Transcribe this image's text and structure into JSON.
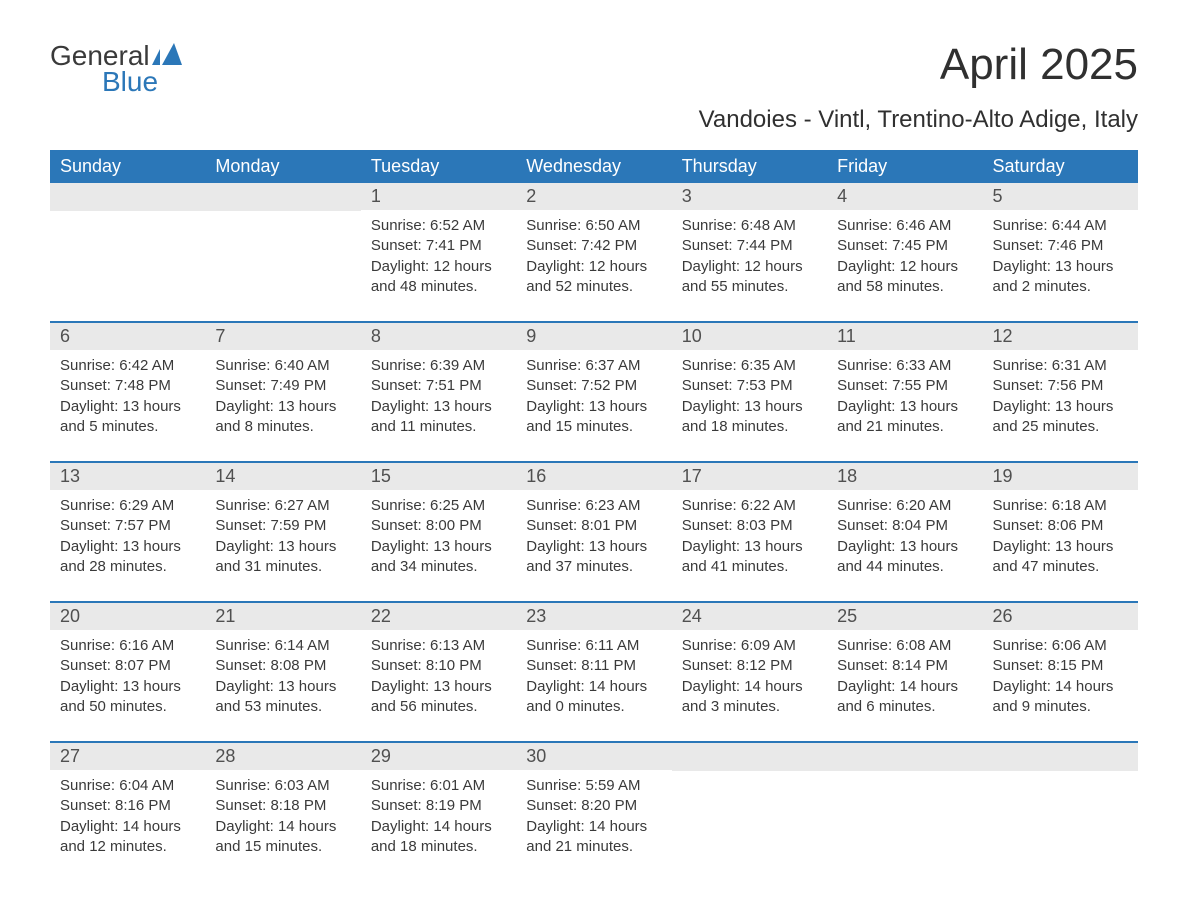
{
  "logo": {
    "text_top": "General",
    "text_bottom": "Blue",
    "icon_color": "#2b77b8"
  },
  "title": "April 2025",
  "subtitle": "Vandoies - Vintl, Trentino-Alto Adige, Italy",
  "colors": {
    "header_bg": "#2b77b8",
    "header_text": "#ffffff",
    "day_num_bg": "#e9e9e9",
    "row_divider": "#2b77b8",
    "text": "#3a3a3a"
  },
  "weekdays": [
    "Sunday",
    "Monday",
    "Tuesday",
    "Wednesday",
    "Thursday",
    "Friday",
    "Saturday"
  ],
  "weeks": [
    [
      null,
      null,
      {
        "day": "1",
        "sunrise": "Sunrise: 6:52 AM",
        "sunset": "Sunset: 7:41 PM",
        "daylight1": "Daylight: 12 hours",
        "daylight2": "and 48 minutes."
      },
      {
        "day": "2",
        "sunrise": "Sunrise: 6:50 AM",
        "sunset": "Sunset: 7:42 PM",
        "daylight1": "Daylight: 12 hours",
        "daylight2": "and 52 minutes."
      },
      {
        "day": "3",
        "sunrise": "Sunrise: 6:48 AM",
        "sunset": "Sunset: 7:44 PM",
        "daylight1": "Daylight: 12 hours",
        "daylight2": "and 55 minutes."
      },
      {
        "day": "4",
        "sunrise": "Sunrise: 6:46 AM",
        "sunset": "Sunset: 7:45 PM",
        "daylight1": "Daylight: 12 hours",
        "daylight2": "and 58 minutes."
      },
      {
        "day": "5",
        "sunrise": "Sunrise: 6:44 AM",
        "sunset": "Sunset: 7:46 PM",
        "daylight1": "Daylight: 13 hours",
        "daylight2": "and 2 minutes."
      }
    ],
    [
      {
        "day": "6",
        "sunrise": "Sunrise: 6:42 AM",
        "sunset": "Sunset: 7:48 PM",
        "daylight1": "Daylight: 13 hours",
        "daylight2": "and 5 minutes."
      },
      {
        "day": "7",
        "sunrise": "Sunrise: 6:40 AM",
        "sunset": "Sunset: 7:49 PM",
        "daylight1": "Daylight: 13 hours",
        "daylight2": "and 8 minutes."
      },
      {
        "day": "8",
        "sunrise": "Sunrise: 6:39 AM",
        "sunset": "Sunset: 7:51 PM",
        "daylight1": "Daylight: 13 hours",
        "daylight2": "and 11 minutes."
      },
      {
        "day": "9",
        "sunrise": "Sunrise: 6:37 AM",
        "sunset": "Sunset: 7:52 PM",
        "daylight1": "Daylight: 13 hours",
        "daylight2": "and 15 minutes."
      },
      {
        "day": "10",
        "sunrise": "Sunrise: 6:35 AM",
        "sunset": "Sunset: 7:53 PM",
        "daylight1": "Daylight: 13 hours",
        "daylight2": "and 18 minutes."
      },
      {
        "day": "11",
        "sunrise": "Sunrise: 6:33 AM",
        "sunset": "Sunset: 7:55 PM",
        "daylight1": "Daylight: 13 hours",
        "daylight2": "and 21 minutes."
      },
      {
        "day": "12",
        "sunrise": "Sunrise: 6:31 AM",
        "sunset": "Sunset: 7:56 PM",
        "daylight1": "Daylight: 13 hours",
        "daylight2": "and 25 minutes."
      }
    ],
    [
      {
        "day": "13",
        "sunrise": "Sunrise: 6:29 AM",
        "sunset": "Sunset: 7:57 PM",
        "daylight1": "Daylight: 13 hours",
        "daylight2": "and 28 minutes."
      },
      {
        "day": "14",
        "sunrise": "Sunrise: 6:27 AM",
        "sunset": "Sunset: 7:59 PM",
        "daylight1": "Daylight: 13 hours",
        "daylight2": "and 31 minutes."
      },
      {
        "day": "15",
        "sunrise": "Sunrise: 6:25 AM",
        "sunset": "Sunset: 8:00 PM",
        "daylight1": "Daylight: 13 hours",
        "daylight2": "and 34 minutes."
      },
      {
        "day": "16",
        "sunrise": "Sunrise: 6:23 AM",
        "sunset": "Sunset: 8:01 PM",
        "daylight1": "Daylight: 13 hours",
        "daylight2": "and 37 minutes."
      },
      {
        "day": "17",
        "sunrise": "Sunrise: 6:22 AM",
        "sunset": "Sunset: 8:03 PM",
        "daylight1": "Daylight: 13 hours",
        "daylight2": "and 41 minutes."
      },
      {
        "day": "18",
        "sunrise": "Sunrise: 6:20 AM",
        "sunset": "Sunset: 8:04 PM",
        "daylight1": "Daylight: 13 hours",
        "daylight2": "and 44 minutes."
      },
      {
        "day": "19",
        "sunrise": "Sunrise: 6:18 AM",
        "sunset": "Sunset: 8:06 PM",
        "daylight1": "Daylight: 13 hours",
        "daylight2": "and 47 minutes."
      }
    ],
    [
      {
        "day": "20",
        "sunrise": "Sunrise: 6:16 AM",
        "sunset": "Sunset: 8:07 PM",
        "daylight1": "Daylight: 13 hours",
        "daylight2": "and 50 minutes."
      },
      {
        "day": "21",
        "sunrise": "Sunrise: 6:14 AM",
        "sunset": "Sunset: 8:08 PM",
        "daylight1": "Daylight: 13 hours",
        "daylight2": "and 53 minutes."
      },
      {
        "day": "22",
        "sunrise": "Sunrise: 6:13 AM",
        "sunset": "Sunset: 8:10 PM",
        "daylight1": "Daylight: 13 hours",
        "daylight2": "and 56 minutes."
      },
      {
        "day": "23",
        "sunrise": "Sunrise: 6:11 AM",
        "sunset": "Sunset: 8:11 PM",
        "daylight1": "Daylight: 14 hours",
        "daylight2": "and 0 minutes."
      },
      {
        "day": "24",
        "sunrise": "Sunrise: 6:09 AM",
        "sunset": "Sunset: 8:12 PM",
        "daylight1": "Daylight: 14 hours",
        "daylight2": "and 3 minutes."
      },
      {
        "day": "25",
        "sunrise": "Sunrise: 6:08 AM",
        "sunset": "Sunset: 8:14 PM",
        "daylight1": "Daylight: 14 hours",
        "daylight2": "and 6 minutes."
      },
      {
        "day": "26",
        "sunrise": "Sunrise: 6:06 AM",
        "sunset": "Sunset: 8:15 PM",
        "daylight1": "Daylight: 14 hours",
        "daylight2": "and 9 minutes."
      }
    ],
    [
      {
        "day": "27",
        "sunrise": "Sunrise: 6:04 AM",
        "sunset": "Sunset: 8:16 PM",
        "daylight1": "Daylight: 14 hours",
        "daylight2": "and 12 minutes."
      },
      {
        "day": "28",
        "sunrise": "Sunrise: 6:03 AM",
        "sunset": "Sunset: 8:18 PM",
        "daylight1": "Daylight: 14 hours",
        "daylight2": "and 15 minutes."
      },
      {
        "day": "29",
        "sunrise": "Sunrise: 6:01 AM",
        "sunset": "Sunset: 8:19 PM",
        "daylight1": "Daylight: 14 hours",
        "daylight2": "and 18 minutes."
      },
      {
        "day": "30",
        "sunrise": "Sunrise: 5:59 AM",
        "sunset": "Sunset: 8:20 PM",
        "daylight1": "Daylight: 14 hours",
        "daylight2": "and 21 minutes."
      },
      null,
      null,
      null
    ]
  ]
}
